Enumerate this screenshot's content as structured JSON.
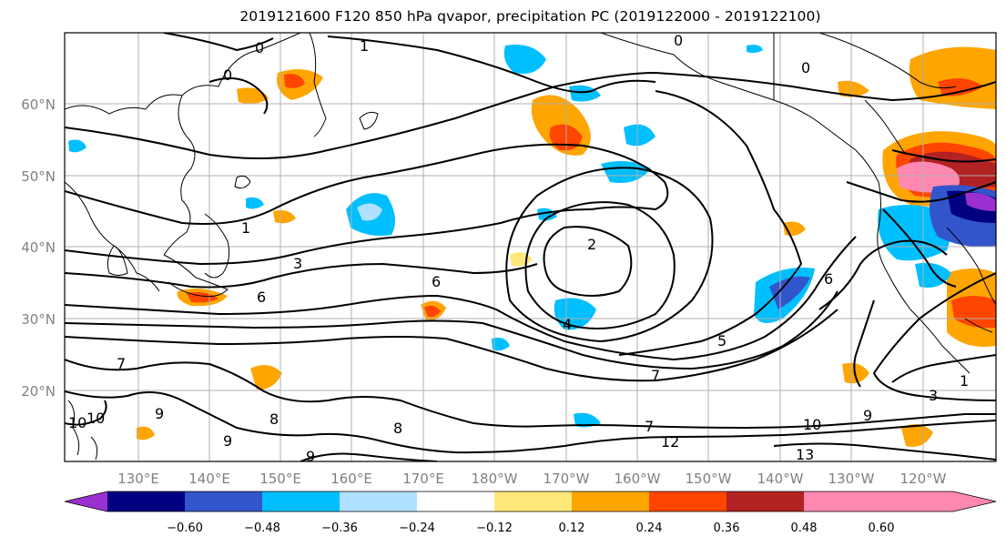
{
  "title": "2019121600 F120 850 hPa qvapor, precipitation PC (2019122000 - 2019122100)",
  "latitude_labels": [
    "60°N",
    "50°N",
    "40°N",
    "30°N",
    "20°N"
  ],
  "longitude_labels": [
    "130°E",
    "140°E",
    "150°E",
    "160°E",
    "170°E",
    "180°W",
    "170°W",
    "160°W",
    "150°W",
    "140°W",
    "130°W",
    "120°W"
  ],
  "colorbar": {
    "tick_labels": [
      "−0.60",
      "−0.48",
      "−0.36",
      "−0.24",
      "−0.12",
      "0.12",
      "0.24",
      "0.36",
      "0.48",
      "0.60"
    ],
    "colors": [
      "#9b30d0",
      "#000080",
      "#3355cc",
      "#00bfff",
      "#b0e0ff",
      "#ffffff",
      "#ffe87a",
      "#ffa500",
      "#ff4500",
      "#b22222",
      "#ff88b0"
    ]
  },
  "contour_labels": [
    "0",
    "1",
    "0",
    "0",
    "0",
    "1",
    "2",
    "3",
    "6",
    "6",
    "4",
    "5",
    "7",
    "8",
    "9",
    "10",
    "12",
    "10",
    "9",
    "13",
    "3",
    "1",
    "6",
    "9",
    "7",
    "7",
    "10",
    "8",
    "9"
  ]
}
